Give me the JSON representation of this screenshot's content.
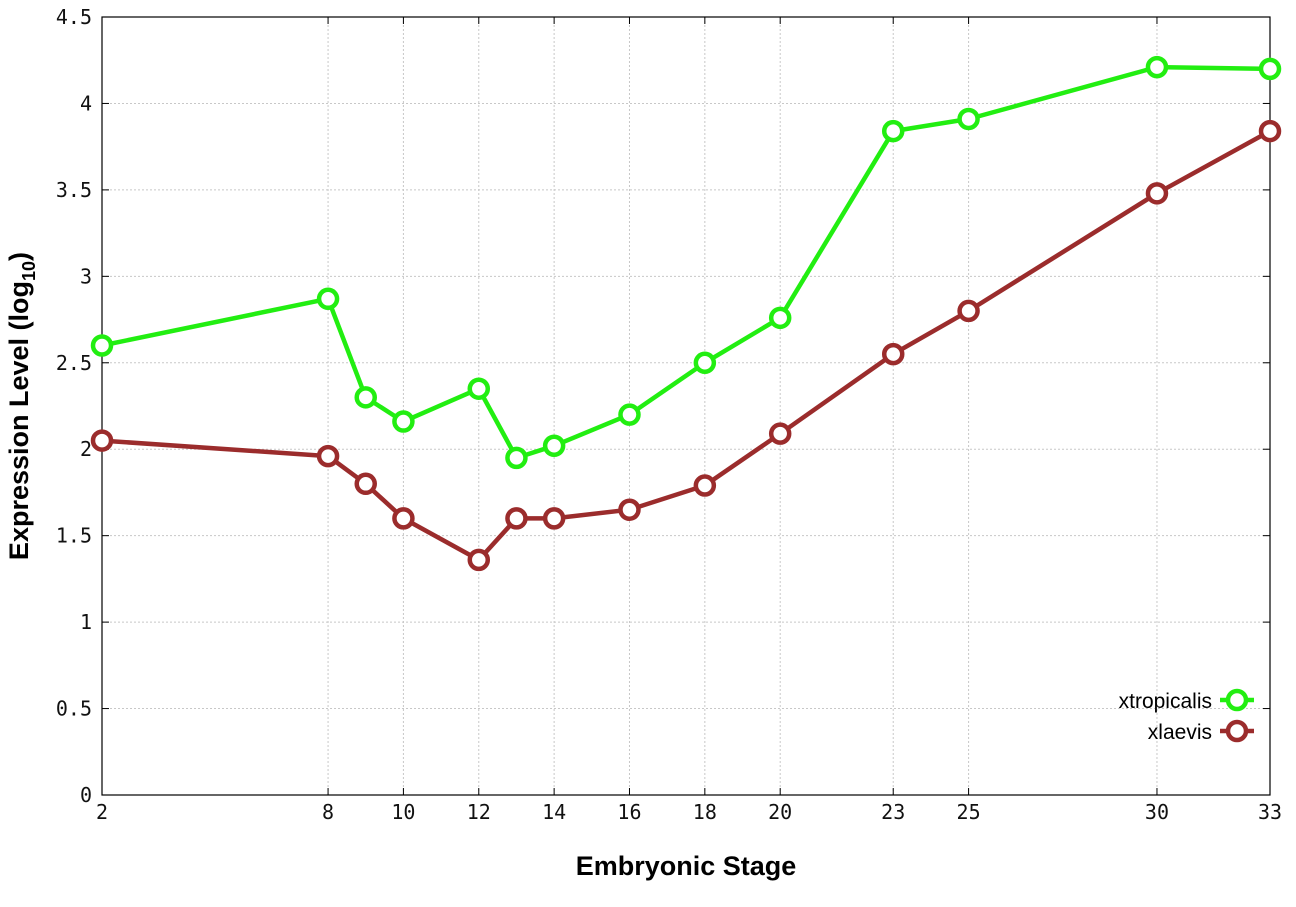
{
  "chart_data": {
    "type": "line",
    "xlabel": "Embryonic Stage",
    "ylabel_main": "Expression Level (log",
    "ylabel_sub": "10",
    "ylabel_close": ")",
    "ylim": [
      0,
      4.5
    ],
    "xlim": [
      2,
      33
    ],
    "grid": true,
    "legend_position": "bottom-right",
    "x": [
      2,
      8,
      9,
      10,
      12,
      13,
      14,
      16,
      18,
      20,
      23,
      25,
      30,
      33
    ],
    "x_tick_labels": [
      "2",
      "8",
      "10",
      "12",
      "14",
      "16",
      "18",
      "20",
      "23",
      "25",
      "30",
      "33"
    ],
    "y_tick_labels": [
      "0",
      "0.5",
      "1",
      "1.5",
      "2",
      "2.5",
      "3",
      "3.5",
      "4",
      "4.5"
    ],
    "series": [
      {
        "name": "xtropicalis",
        "color": "#22ee11",
        "values": [
          2.6,
          2.87,
          2.3,
          2.16,
          2.35,
          1.95,
          2.02,
          2.2,
          2.5,
          2.76,
          3.84,
          3.91,
          4.21,
          4.2
        ]
      },
      {
        "name": "xlaevis",
        "color": "#9b2c2c",
        "values": [
          2.05,
          1.96,
          1.8,
          1.6,
          1.36,
          1.6,
          1.6,
          1.65,
          1.79,
          2.09,
          2.55,
          2.8,
          3.48,
          3.84
        ]
      }
    ]
  }
}
